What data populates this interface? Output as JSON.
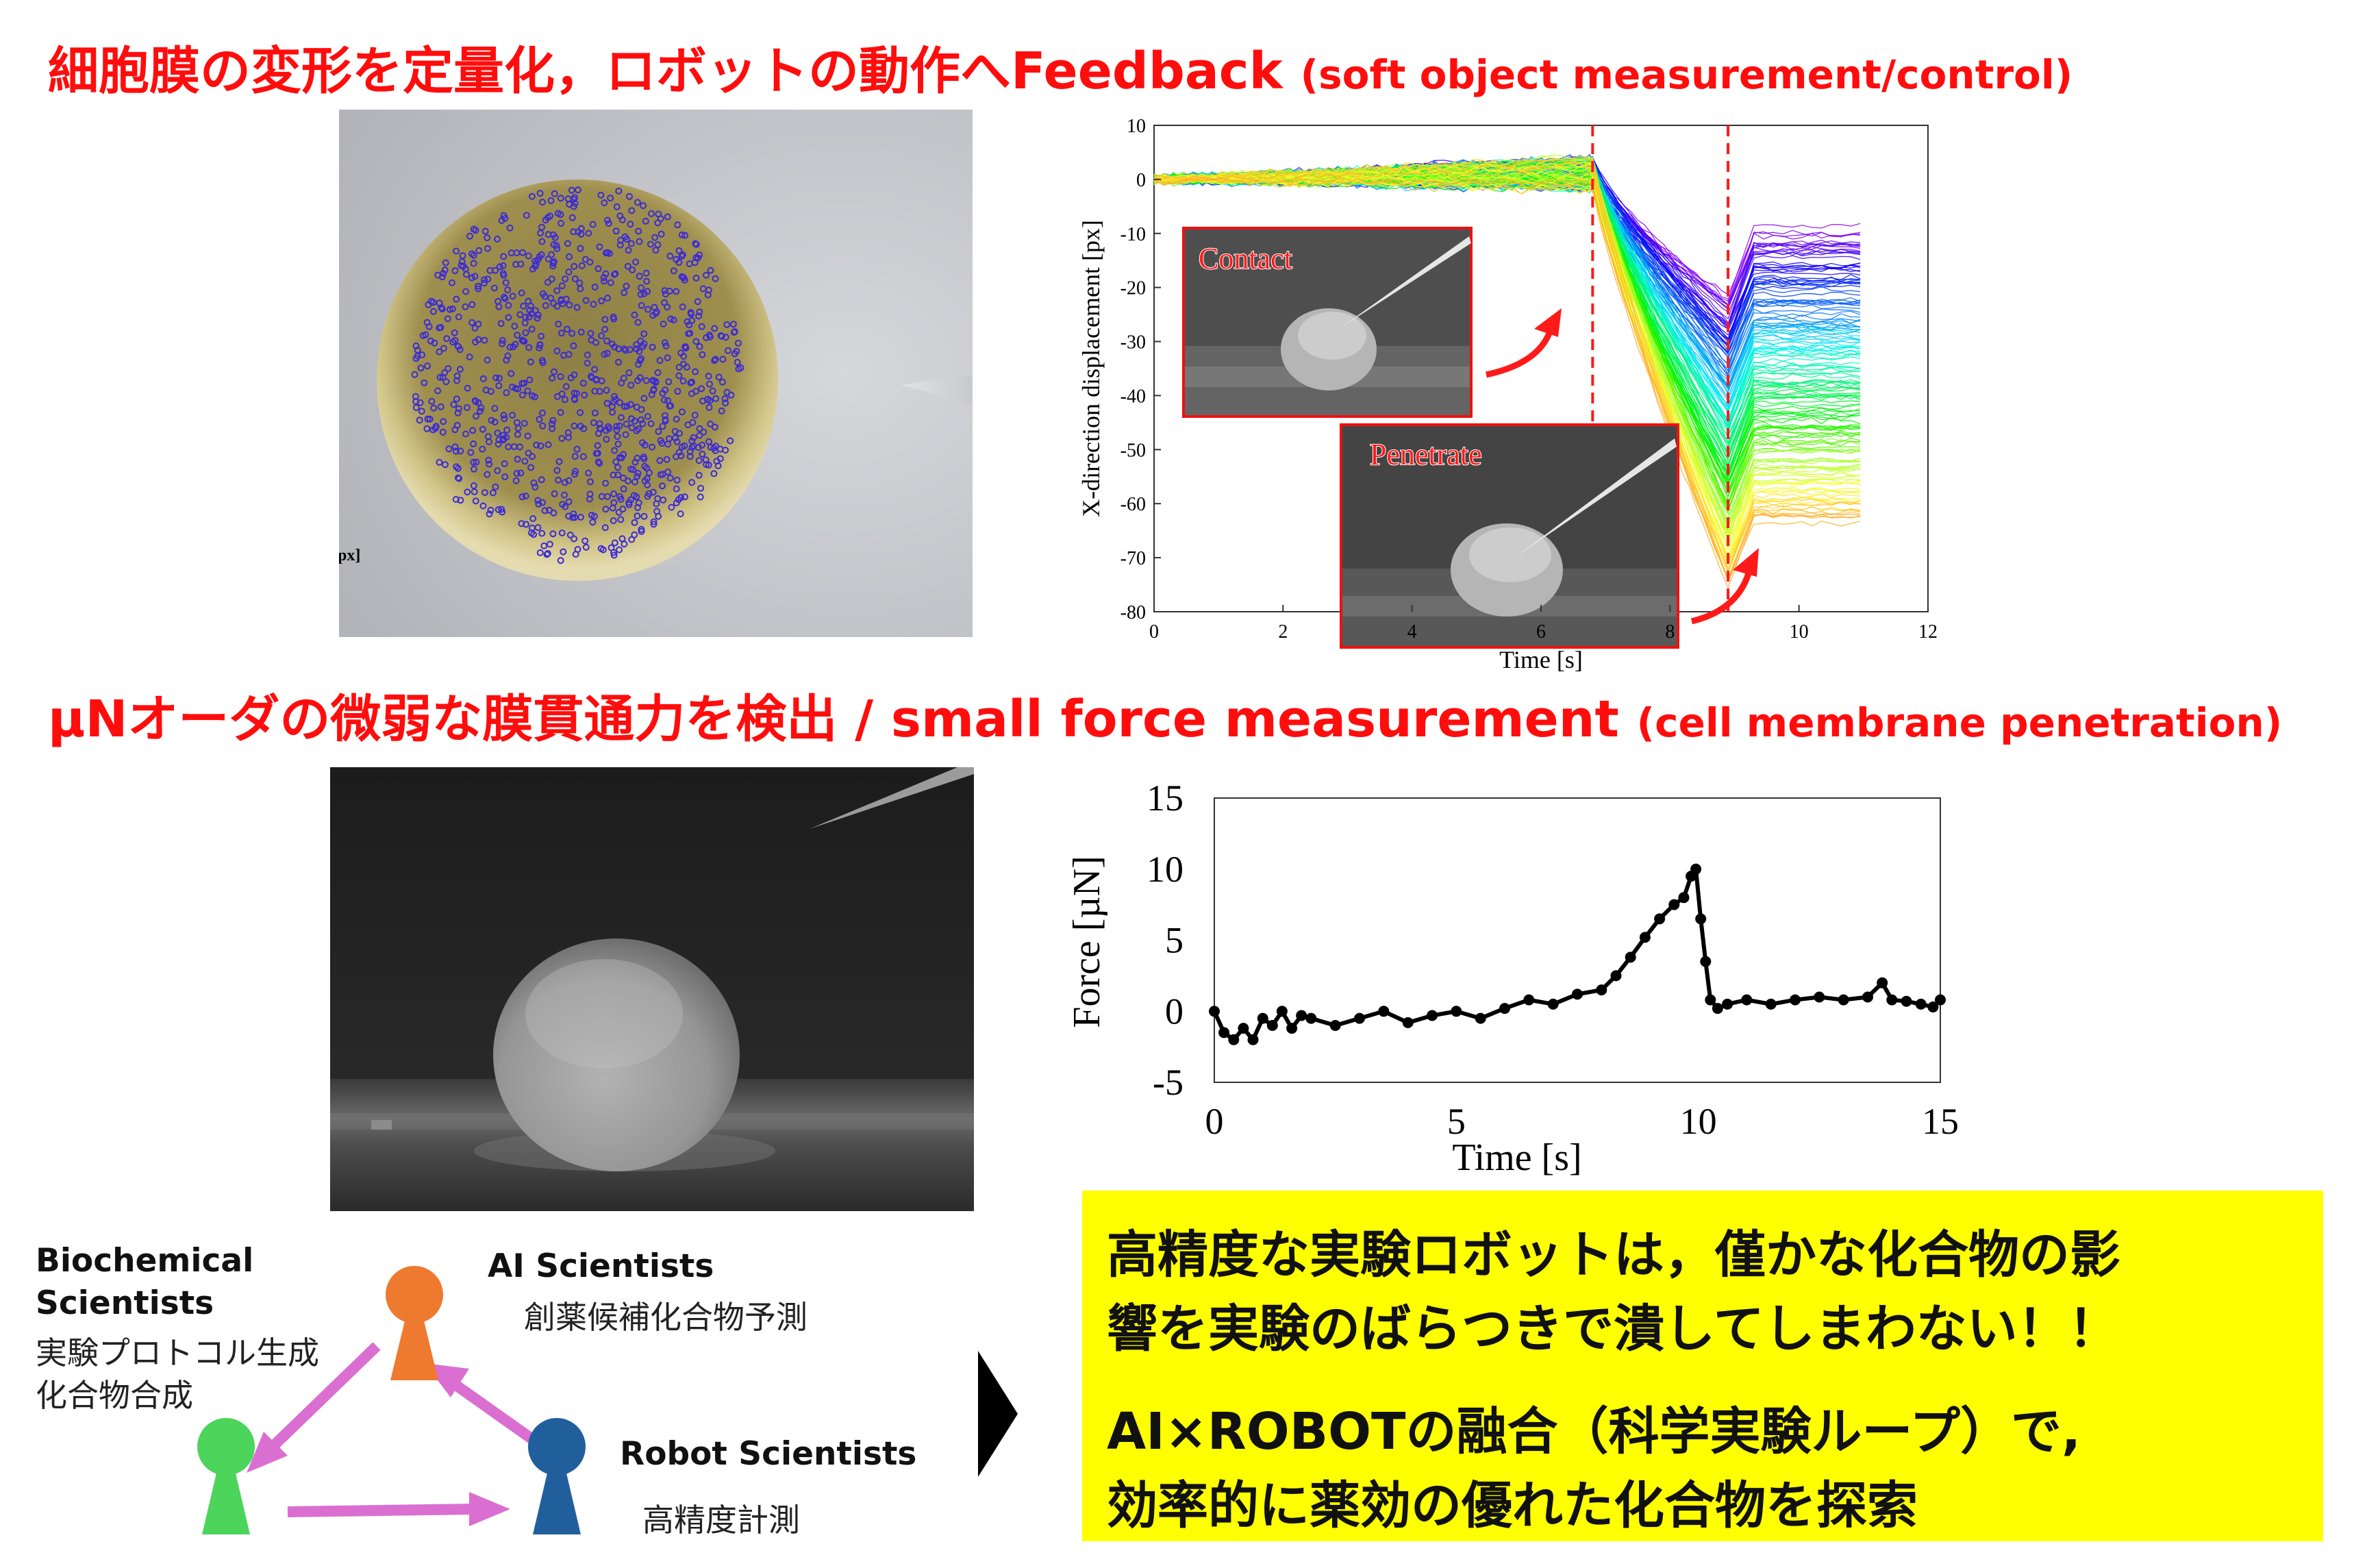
{
  "heading1": {
    "main": "細胞膜の変形を定量化，ロボットの動作へFeedback",
    "sub": "(soft object measurement/control)"
  },
  "heading2": {
    "main": "µNオーダの微弱な膜貫通力を検出 / small force measurement",
    "sub": "(cell membrane penetration)"
  },
  "panel_a": {
    "axis_fragment": "px]",
    "markers": {
      "count": 900,
      "color": "#3b2bd6"
    }
  },
  "chart_data": [
    {
      "type": "line",
      "xlabel": "Time [s]",
      "ylabel": "X-direction displacement [px]",
      "xlim": [
        0,
        12
      ],
      "ylim": [
        -80,
        10
      ],
      "x_ticks": [
        0,
        2,
        4,
        6,
        8,
        10,
        12
      ],
      "y_ticks": [
        10,
        0,
        -10,
        -20,
        -30,
        -40,
        -50,
        -60,
        -70,
        -80
      ],
      "grid": false,
      "series_count": 160,
      "series_profile": {
        "phase_times": [
          0,
          6.8,
          8.9,
          9.3,
          11.1
        ],
        "contact_value_range": [
          -2,
          4
        ],
        "penetrate_min_range": [
          -75,
          -22
        ],
        "end_value_range": [
          -63,
          -10
        ],
        "colors": "rainbow from purple (smallest displacement) through blue, cyan, green to yellow/orange (largest)"
      },
      "events": [
        {
          "x": 6.8,
          "style": "red dashed vertical line"
        },
        {
          "x": 8.9,
          "style": "red dashed vertical line"
        }
      ],
      "annotations": [
        {
          "label": "Contact",
          "points_to_x": 6.8
        },
        {
          "label": "Penetrate",
          "points_to_x": 8.9
        }
      ]
    },
    {
      "type": "line",
      "xlabel": "Time [s]",
      "ylabel": "Force [µN]",
      "xlim": [
        0,
        15
      ],
      "ylim": [
        -5,
        15
      ],
      "x_ticks": [
        0,
        5,
        10,
        15
      ],
      "y_ticks": [
        15,
        10,
        5,
        0,
        -5
      ],
      "grid": false,
      "marker": "black dots",
      "x": [
        0,
        0.2,
        0.4,
        0.6,
        0.8,
        1.0,
        1.2,
        1.4,
        1.6,
        1.8,
        2.0,
        2.5,
        3.0,
        3.5,
        4.0,
        4.5,
        5.0,
        5.5,
        6.0,
        6.5,
        7.0,
        7.5,
        8.0,
        8.3,
        8.6,
        8.9,
        9.2,
        9.5,
        9.7,
        9.85,
        9.95,
        10.05,
        10.15,
        10.25,
        10.4,
        10.6,
        11.0,
        11.5,
        12.0,
        12.5,
        13.0,
        13.5,
        13.8,
        14.0,
        14.3,
        14.6,
        14.85,
        15.0
      ],
      "y": [
        0,
        -1.5,
        -2,
        -1.2,
        -2,
        -0.5,
        -1,
        0,
        -1.2,
        -0.3,
        -0.5,
        -1,
        -0.5,
        0,
        -0.8,
        -0.3,
        0,
        -0.5,
        0.2,
        0.8,
        0.5,
        1.2,
        1.5,
        2.5,
        3.8,
        5.2,
        6.5,
        7.5,
        8.0,
        9.5,
        10,
        6.5,
        3.5,
        0.8,
        0.2,
        0.5,
        0.8,
        0.5,
        0.8,
        1.0,
        0.8,
        1.0,
        2.0,
        0.8,
        0.7,
        0.5,
        0.3,
        0.8
      ]
    }
  ],
  "team": {
    "biochemical": {
      "name": "Biochemical\nScientists",
      "role": "実験プロトコル生成\n化合物合成",
      "color": "#4cd45b"
    },
    "ai": {
      "name": "AI Scientists",
      "role": "創薬候補化合物予測",
      "color": "#ee7a30"
    },
    "robot": {
      "name": "Robot Scientists",
      "role": "高精度計測",
      "color": "#215e9c"
    },
    "arrow_color": "#da6fd1"
  },
  "callout": {
    "line1": "高精度な実験ロボットは，僅かな化合物の影\n響を実験のばらつきで潰してしまわない！！",
    "line2": "AI×ROBOTの融合（科学実験ループ）で,\n効率的に薬効の優れた化合物を探索"
  }
}
